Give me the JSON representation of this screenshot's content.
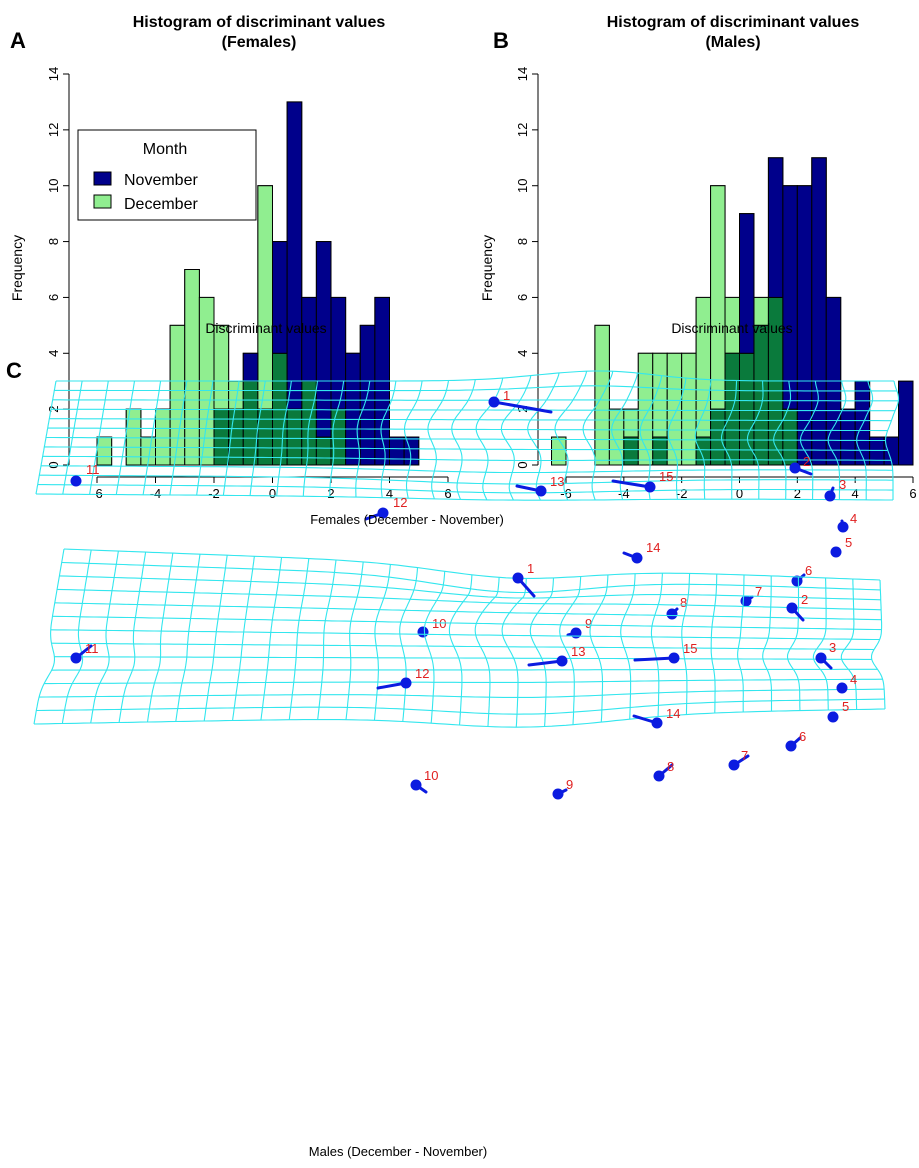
{
  "colors": {
    "november": "#00008b",
    "december": "#90ee90",
    "overlap": "#0a7a3c",
    "grid": "#33e6ee",
    "landmark": "#0b1be0",
    "landmark_label": "#e02020"
  },
  "chart_data": [
    {
      "id": "A",
      "type": "bar",
      "panel_label": "A",
      "title": [
        "Histogram of discriminant values",
        "(Females)"
      ],
      "xlabel": "Discriminant values",
      "ylabel": "Frequency",
      "xlim": [
        -6,
        6
      ],
      "ylim": [
        0,
        14
      ],
      "xticks": [
        -6,
        -4,
        -2,
        0,
        2,
        4,
        6
      ],
      "yticks": [
        0,
        2,
        4,
        6,
        8,
        10,
        12,
        14
      ],
      "bin_width": 0.5,
      "legend": {
        "title": "Month",
        "entries": [
          "November",
          "December"
        ],
        "placement": "top-left"
      },
      "series": [
        {
          "name": "November",
          "bins": [
            [
              -2,
              -1.5,
              2
            ],
            [
              -1.5,
              -1,
              2
            ],
            [
              -1,
              -0.5,
              4
            ],
            [
              -0.5,
              0,
              2
            ],
            [
              0,
              0.5,
              8
            ],
            [
              0.5,
              1,
              13
            ],
            [
              1,
              1.5,
              6
            ],
            [
              1.5,
              2,
              8
            ],
            [
              2,
              2.5,
              6
            ],
            [
              2.5,
              3,
              4
            ],
            [
              3,
              3.5,
              5
            ],
            [
              3.5,
              4,
              6
            ],
            [
              4,
              4.5,
              1
            ],
            [
              4.5,
              5,
              1
            ]
          ]
        },
        {
          "name": "December",
          "bins": [
            [
              -6,
              -5.5,
              1
            ],
            [
              -5,
              -4.5,
              2
            ],
            [
              -4.5,
              -4,
              1
            ],
            [
              -4,
              -3.5,
              2
            ],
            [
              -3.5,
              -3,
              5
            ],
            [
              -3,
              -2.5,
              7
            ],
            [
              -2.5,
              -2,
              6
            ],
            [
              -2,
              -1.5,
              5
            ],
            [
              -1.5,
              -1,
              3
            ],
            [
              -1,
              -0.5,
              3
            ],
            [
              -0.5,
              0,
              10
            ],
            [
              0,
              0.5,
              4
            ],
            [
              0.5,
              1,
              2
            ],
            [
              1,
              1.5,
              3
            ],
            [
              1.5,
              2,
              1
            ],
            [
              2,
              2.5,
              2
            ]
          ]
        }
      ]
    },
    {
      "id": "B",
      "type": "bar",
      "panel_label": "B",
      "title": [
        "Histogram of discriminant values",
        "(Males)"
      ],
      "xlabel": "Discriminant values",
      "ylabel": "Frequency",
      "xlim": [
        -6,
        6
      ],
      "ylim": [
        0,
        14
      ],
      "xticks": [
        -6,
        -4,
        -2,
        0,
        2,
        4,
        6
      ],
      "yticks": [
        0,
        2,
        4,
        6,
        8,
        10,
        12,
        14
      ],
      "bin_width": 0.5,
      "series": [
        {
          "name": "November",
          "bins": [
            [
              -4,
              -3.5,
              1
            ],
            [
              -3,
              -2.5,
              1
            ],
            [
              -1.5,
              -1,
              1
            ],
            [
              -1,
              -0.5,
              2
            ],
            [
              -0.5,
              0,
              4
            ],
            [
              0,
              0.5,
              9
            ],
            [
              0.5,
              1,
              5
            ],
            [
              1,
              1.5,
              11
            ],
            [
              1.5,
              2,
              10
            ],
            [
              2,
              2.5,
              10
            ],
            [
              2.5,
              3,
              11
            ],
            [
              3,
              3.5,
              6
            ],
            [
              3.5,
              4,
              2
            ],
            [
              4,
              4.5,
              3
            ],
            [
              4.5,
              5,
              1
            ],
            [
              5,
              5.5,
              1
            ],
            [
              5.5,
              6,
              3
            ]
          ]
        },
        {
          "name": "December",
          "bins": [
            [
              -6.5,
              -6,
              1
            ],
            [
              -5,
              -4.5,
              5
            ],
            [
              -4.5,
              -4,
              2
            ],
            [
              -4,
              -3.5,
              2
            ],
            [
              -3.5,
              -3,
              4
            ],
            [
              -3,
              -2.5,
              4
            ],
            [
              -2.5,
              -2,
              4
            ],
            [
              -2,
              -1.5,
              4
            ],
            [
              -1.5,
              -1,
              6
            ],
            [
              -1,
              -0.5,
              10
            ],
            [
              -0.5,
              0,
              6
            ],
            [
              0,
              0.5,
              4
            ],
            [
              0.5,
              1,
              6
            ],
            [
              1,
              1.5,
              6
            ],
            [
              1.5,
              2,
              2
            ]
          ]
        }
      ]
    }
  ],
  "deformation": {
    "panel_label": "C",
    "grids": [
      {
        "caption": "Females (December - November)",
        "landmarks": [
          {
            "id": "1",
            "label": "1"
          },
          {
            "id": "2",
            "label": "2"
          },
          {
            "id": "3",
            "label": "3"
          },
          {
            "id": "4",
            "label": "4"
          },
          {
            "id": "5",
            "label": "5"
          },
          {
            "id": "6",
            "label": "6"
          },
          {
            "id": "7",
            "label": "7"
          },
          {
            "id": "8",
            "label": "8"
          },
          {
            "id": "9",
            "label": "9"
          },
          {
            "id": "10",
            "label": "10"
          },
          {
            "id": "11",
            "label": "11"
          },
          {
            "id": "12",
            "label": "12"
          },
          {
            "id": "13",
            "label": "13"
          },
          {
            "id": "14",
            "label": "14"
          },
          {
            "id": "15",
            "label": "15"
          }
        ]
      },
      {
        "caption": "Males (December - November)",
        "landmarks": [
          {
            "id": "1",
            "label": "1"
          },
          {
            "id": "2",
            "label": "2"
          },
          {
            "id": "3",
            "label": "3"
          },
          {
            "id": "4",
            "label": "4"
          },
          {
            "id": "5",
            "label": "5"
          },
          {
            "id": "6",
            "label": "6"
          },
          {
            "id": "7",
            "label": "7"
          },
          {
            "id": "8",
            "label": "8"
          },
          {
            "id": "9",
            "label": "9"
          },
          {
            "id": "10",
            "label": "10"
          },
          {
            "id": "11",
            "label": "11"
          },
          {
            "id": "12",
            "label": "12"
          },
          {
            "id": "13",
            "label": "13"
          },
          {
            "id": "14",
            "label": "14"
          },
          {
            "id": "15",
            "label": "15"
          }
        ]
      }
    ]
  }
}
